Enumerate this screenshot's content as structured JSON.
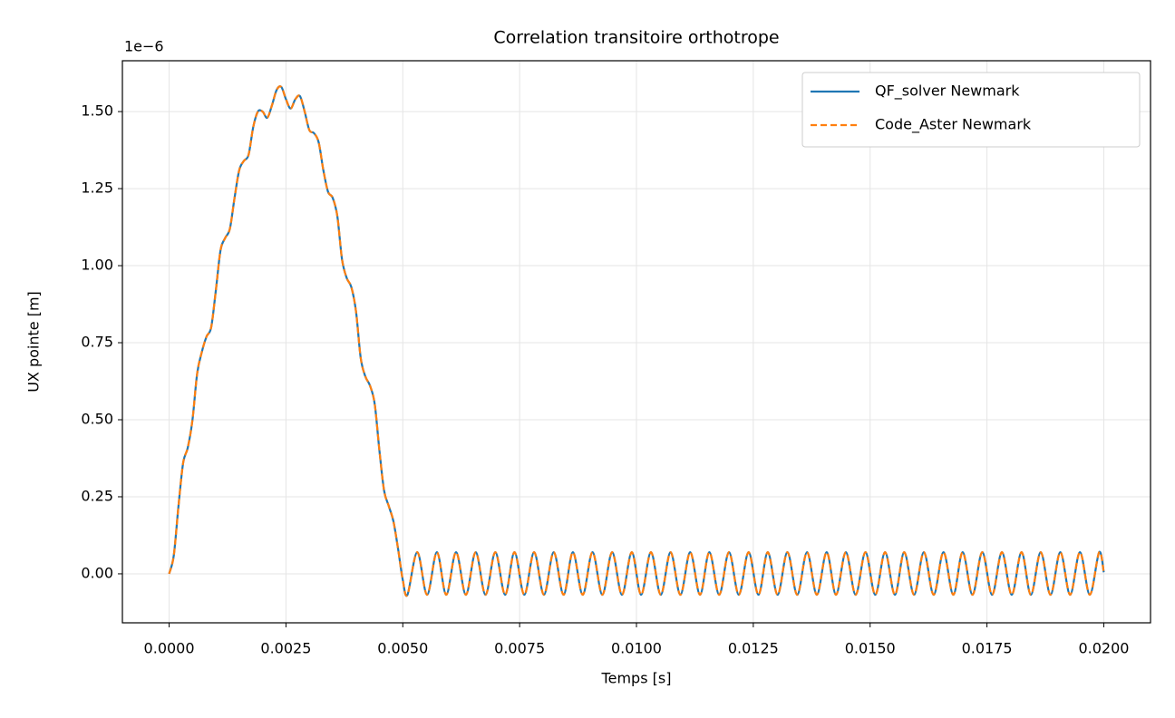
{
  "chart_data": {
    "type": "line",
    "title": "Correlation transitoire orthotrope",
    "x_label": "Temps [s]",
    "y_label": "UX pointe [m]",
    "y_offset_label": "1e−6",
    "xlim": [
      -0.001,
      0.021
    ],
    "ylim": [
      -0.159,
      1.665
    ],
    "grid": true,
    "legend": "upper right",
    "xticks": [
      {
        "value": 0,
        "label": "0.0000"
      },
      {
        "value": 0.0025,
        "label": "0.0025"
      },
      {
        "value": 0.005,
        "label": "0.0050"
      },
      {
        "value": 0.0075,
        "label": "0.0075"
      },
      {
        "value": 0.01,
        "label": "0.0100"
      },
      {
        "value": 0.0125,
        "label": "0.0125"
      },
      {
        "value": 0.015,
        "label": "0.0150"
      },
      {
        "value": 0.0175,
        "label": "0.0175"
      },
      {
        "value": 0.02,
        "label": "0.0200"
      }
    ],
    "yticks": [
      {
        "value": 0,
        "label": "0.00"
      },
      {
        "value": 0.25,
        "label": "0.25"
      },
      {
        "value": 0.5,
        "label": "0.50"
      },
      {
        "value": 0.75,
        "label": "0.75"
      },
      {
        "value": 1,
        "label": "1.00"
      },
      {
        "value": 1.25,
        "label": "1.25"
      },
      {
        "value": 1.5,
        "label": "1.50"
      }
    ],
    "x": [
      0,
      0.0001,
      0.0002,
      0.0003,
      0.0004,
      0.0005,
      0.0006,
      0.0007,
      0.0008,
      0.0009,
      0.001,
      0.0011,
      0.0012,
      0.0013,
      0.0014,
      0.0015,
      0.0016,
      0.0017,
      0.0018,
      0.0019,
      0.002,
      0.0021,
      0.0022,
      0.0023,
      0.0024,
      0.0025,
      0.0026,
      0.0027,
      0.0028,
      0.0029,
      0.003,
      0.0031,
      0.0032,
      0.0033,
      0.0034,
      0.0035,
      0.0036,
      0.0037,
      0.0038,
      0.0039,
      0.004,
      0.0041,
      0.0042,
      0.0043,
      0.0044,
      0.0045,
      0.0046,
      0.0047,
      0.0048,
      0.0049,
      0.005,
      0.0051,
      0.00531,
      0.00552,
      0.00573,
      0.00593,
      0.00614,
      0.00635,
      0.00656,
      0.00677,
      0.00698,
      0.00719,
      0.00739,
      0.0076,
      0.00781,
      0.00802,
      0.00823,
      0.00844,
      0.00864,
      0.00885,
      0.00906,
      0.00927,
      0.00948,
      0.00969,
      0.0099,
      0.0101,
      0.01031,
      0.01052,
      0.01073,
      0.01094,
      0.01115,
      0.01136,
      0.01156,
      0.01177,
      0.01198,
      0.01219,
      0.0124,
      0.01261,
      0.01281,
      0.01302,
      0.01323,
      0.01344,
      0.01365,
      0.01386,
      0.01407,
      0.01427,
      0.01448,
      0.01469,
      0.0149,
      0.01511,
      0.01532,
      0.01553,
      0.01573,
      0.01594,
      0.01615,
      0.01636,
      0.01657,
      0.01678,
      0.01698,
      0.01719,
      0.0174,
      0.01761,
      0.01782,
      0.01803,
      0.01824,
      0.01844,
      0.01865,
      0.01886,
      0.01907,
      0.01928,
      0.01949,
      0.0197,
      0.0199,
      0.02
    ],
    "series": [
      {
        "name": "QF_solver Newmark",
        "color": "#1f77b4",
        "linestyle": "solid",
        "values": [
          0,
          0.06,
          0.22,
          0.36,
          0.41,
          0.5,
          0.65,
          0.72,
          0.77,
          0.8,
          0.92,
          1.05,
          1.09,
          1.12,
          1.22,
          1.31,
          1.34,
          1.36,
          1.45,
          1.5,
          1.5,
          1.48,
          1.52,
          1.57,
          1.58,
          1.54,
          1.51,
          1.54,
          1.55,
          1.5,
          1.44,
          1.43,
          1.4,
          1.31,
          1.24,
          1.22,
          1.16,
          1.02,
          0.96,
          0.93,
          0.85,
          0.7,
          0.64,
          0.61,
          0.55,
          0.4,
          0.27,
          0.22,
          0.17,
          0.08,
          -0.02,
          -0.068,
          0.07,
          -0.068,
          0.07,
          -0.068,
          0.07,
          -0.068,
          0.07,
          -0.068,
          0.07,
          -0.068,
          0.07,
          -0.068,
          0.07,
          -0.068,
          0.07,
          -0.068,
          0.07,
          -0.068,
          0.07,
          -0.068,
          0.07,
          -0.068,
          0.07,
          -0.068,
          0.07,
          -0.068,
          0.07,
          -0.068,
          0.07,
          -0.068,
          0.07,
          -0.068,
          0.07,
          -0.068,
          0.07,
          -0.068,
          0.07,
          -0.068,
          0.07,
          -0.068,
          0.07,
          -0.068,
          0.07,
          -0.068,
          0.07,
          -0.068,
          0.07,
          -0.068,
          0.07,
          -0.068,
          0.07,
          -0.068,
          0.07,
          -0.068,
          0.07,
          -0.068,
          0.07,
          -0.068,
          0.07,
          -0.068,
          0.07,
          -0.068,
          0.07,
          -0.068,
          0.07,
          -0.068,
          0.07,
          -0.068,
          0.07,
          -0.068,
          0.07,
          0.005
        ]
      },
      {
        "name": "Code_Aster Newmark",
        "color": "#ff7f0e",
        "linestyle": "dashed",
        "values": [
          0,
          0.06,
          0.22,
          0.36,
          0.41,
          0.5,
          0.65,
          0.72,
          0.77,
          0.8,
          0.92,
          1.05,
          1.09,
          1.12,
          1.22,
          1.31,
          1.34,
          1.36,
          1.45,
          1.5,
          1.5,
          1.48,
          1.52,
          1.57,
          1.58,
          1.54,
          1.51,
          1.54,
          1.55,
          1.5,
          1.44,
          1.43,
          1.4,
          1.31,
          1.24,
          1.22,
          1.16,
          1.02,
          0.96,
          0.93,
          0.85,
          0.7,
          0.64,
          0.61,
          0.55,
          0.4,
          0.27,
          0.22,
          0.17,
          0.08,
          -0.02,
          -0.068,
          0.07,
          -0.068,
          0.07,
          -0.068,
          0.07,
          -0.068,
          0.07,
          -0.068,
          0.07,
          -0.068,
          0.07,
          -0.068,
          0.07,
          -0.068,
          0.07,
          -0.068,
          0.07,
          -0.068,
          0.07,
          -0.068,
          0.07,
          -0.068,
          0.07,
          -0.068,
          0.07,
          -0.068,
          0.07,
          -0.068,
          0.07,
          -0.068,
          0.07,
          -0.068,
          0.07,
          -0.068,
          0.07,
          -0.068,
          0.07,
          -0.068,
          0.07,
          -0.068,
          0.07,
          -0.068,
          0.07,
          -0.068,
          0.07,
          -0.068,
          0.07,
          -0.068,
          0.07,
          -0.068,
          0.07,
          -0.068,
          0.07,
          -0.068,
          0.07,
          -0.068,
          0.07,
          -0.068,
          0.07,
          -0.068,
          0.07,
          -0.068,
          0.07,
          -0.068,
          0.07,
          -0.068,
          0.07,
          -0.068,
          0.07,
          -0.068,
          0.07,
          0.005
        ]
      }
    ]
  }
}
